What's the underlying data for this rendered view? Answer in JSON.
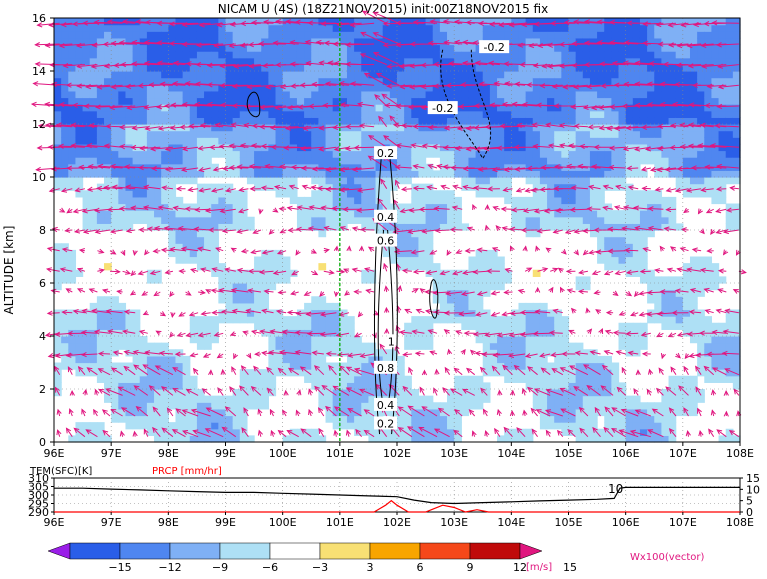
{
  "title": "NICAM U (4S) (18Z21NOV2015) init:00Z18NOV2015 fix",
  "chart_data": [
    {
      "type": "heatmap",
      "title": "NICAM U (4S) (18Z21NOV2015) init:00Z18NOV2015 fix",
      "ylabel": "ALTITUDE [km]",
      "x_ticks": [
        "96E",
        "97E",
        "98E",
        "99E",
        "100E",
        "101E",
        "102E",
        "103E",
        "104E",
        "105E",
        "106E",
        "107E",
        "108E"
      ],
      "x_range": [
        96,
        108
      ],
      "y_ticks": [
        "0",
        "2",
        "4",
        "6",
        "8",
        "10",
        "12",
        "14",
        "16"
      ],
      "y_range": [
        0,
        16
      ],
      "contour_labels": [
        {
          "text": "-0.2",
          "x": 103.7,
          "y": 14.9
        },
        {
          "text": "-0.2",
          "x": 102.8,
          "y": 12.6
        },
        {
          "text": "0.2",
          "x": 101.8,
          "y": 10.9
        },
        {
          "text": "0.4",
          "x": 101.8,
          "y": 8.5
        },
        {
          "text": "0.6",
          "x": 101.8,
          "y": 7.6
        },
        {
          "text": "1",
          "x": 101.9,
          "y": 3.8
        },
        {
          "text": "0.8",
          "x": 101.8,
          "y": 2.8
        },
        {
          "text": "0.4",
          "x": 101.8,
          "y": 1.4
        },
        {
          "text": "0.2",
          "x": 101.8,
          "y": 0.7
        }
      ],
      "marker_line_x": 101.0,
      "vector_color": "#e0167f"
    },
    {
      "type": "line",
      "series": [
        {
          "name": "TEM(SFC)[K]",
          "color": "#000000",
          "axis": "left",
          "x": [
            96,
            96.5,
            97,
            97.5,
            98,
            98.5,
            99,
            99.5,
            100,
            100.5,
            101,
            101.5,
            102,
            102.3,
            102.6,
            103,
            103.5,
            104,
            104.5,
            105,
            105.5,
            105.8,
            105.9,
            106,
            106.5,
            107,
            107.5,
            108
          ],
          "y": [
            304,
            304,
            303.5,
            303,
            302.5,
            302,
            301.5,
            301.5,
            301,
            300.5,
            300,
            299.5,
            299,
            297,
            295.5,
            295,
            295.5,
            296,
            296.5,
            297,
            297.5,
            298,
            304,
            304.5,
            304.5,
            304.5,
            304.5,
            304.5
          ]
        },
        {
          "name": "PRCP [mm/hr]",
          "color": "#ff0000",
          "axis": "right",
          "x": [
            96,
            101.6,
            101.8,
            101.9,
            102,
            102.2,
            102.5,
            102.8,
            103,
            103.2,
            103.4,
            103.6,
            104,
            105,
            108
          ],
          "y": [
            0,
            0,
            3,
            5,
            3,
            0,
            0,
            3,
            2,
            0,
            1,
            0,
            0,
            0,
            0
          ]
        }
      ],
      "left_axis_label": "TEM(SFC)[K]",
      "right_axis_label": "PRCP [mm/hr]",
      "left_ticks": [
        "310",
        "305",
        "300",
        "295",
        "290"
      ],
      "left_range": [
        290,
        310
      ],
      "right_ticks": [
        "15",
        "10",
        "5",
        "0"
      ],
      "right_range": [
        0,
        15
      ],
      "annotation": "10",
      "x_ticks": [
        "96E",
        "97E",
        "98E",
        "99E",
        "100E",
        "101E",
        "102E",
        "103E",
        "104E",
        "105E",
        "106E",
        "107E",
        "108E"
      ]
    }
  ],
  "colorbar": {
    "labels": [
      "−15",
      "−12",
      "−9",
      "−6",
      "−3",
      "3",
      "6",
      "9",
      "12",
      "15"
    ],
    "colors": [
      "#2a5ee8",
      "#4f86f0",
      "#7fb0f5",
      "#aee0f5",
      "#ffffff",
      "#f8e074",
      "#f8a500",
      "#f5481a",
      "#c00a0a"
    ],
    "low_color": "#9a1ee8",
    "high_color": "#e0167f",
    "unit": "[m/s]",
    "vector_note": "Wx100(vector)"
  }
}
